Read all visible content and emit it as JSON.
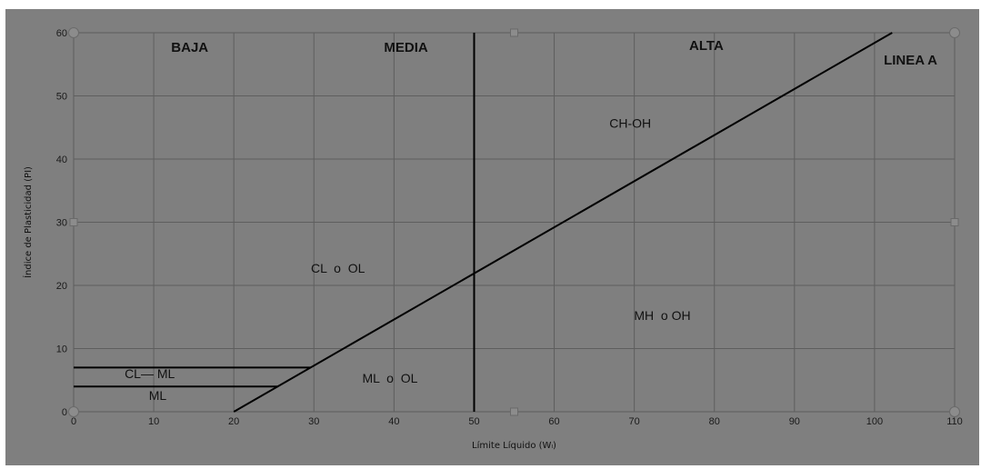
{
  "chart_data": {
    "type": "line",
    "title": "",
    "xlabel": "Límite Líquido (Wₗ)",
    "ylabel": "Índice de Plasticidad (PI)",
    "xlim": [
      0,
      110
    ],
    "ylim": [
      0,
      60
    ],
    "x_ticks": [
      0,
      10,
      20,
      30,
      40,
      50,
      60,
      70,
      80,
      90,
      100,
      110
    ],
    "y_ticks": [
      0,
      10,
      20,
      30,
      40,
      50,
      60
    ],
    "grid": true,
    "series": [
      {
        "name": "LINEA A",
        "points": [
          [
            20,
            0
          ],
          [
            102.2,
            60
          ]
        ]
      },
      {
        "points": [
          [
            50,
            0
          ],
          [
            50,
            60
          ]
        ]
      },
      {
        "points": [
          [
            0,
            7
          ],
          [
            29.6,
            7
          ]
        ]
      },
      {
        "points": [
          [
            0,
            4
          ],
          [
            25.5,
            4
          ]
        ]
      }
    ],
    "zone_labels": [
      {
        "text": "BAJA",
        "x": 14.5,
        "y": 57
      },
      {
        "text": "MEDIA",
        "x": 41.5,
        "y": 57
      },
      {
        "text": "ALTA",
        "x": 79,
        "y": 57.3
      },
      {
        "text": "LINEA A",
        "x": 104.5,
        "y": 55
      }
    ],
    "region_labels": [
      {
        "text": "CH-OH",
        "x": 69.5,
        "y": 45
      },
      {
        "text": "CL  o  OL",
        "x": 33,
        "y": 22
      },
      {
        "text": "MH  o OH",
        "x": 73.5,
        "y": 14.5
      },
      {
        "text": "ML  o  OL",
        "x": 39.5,
        "y": 4.6
      },
      {
        "text": "CL— ML",
        "x": 9.5,
        "y": 5.3
      },
      {
        "text": "ML",
        "x": 10.5,
        "y": 1.9
      }
    ],
    "colors": {
      "background": "#7f7f7f",
      "grid": "#5e5e5e",
      "line": "#000000"
    }
  }
}
